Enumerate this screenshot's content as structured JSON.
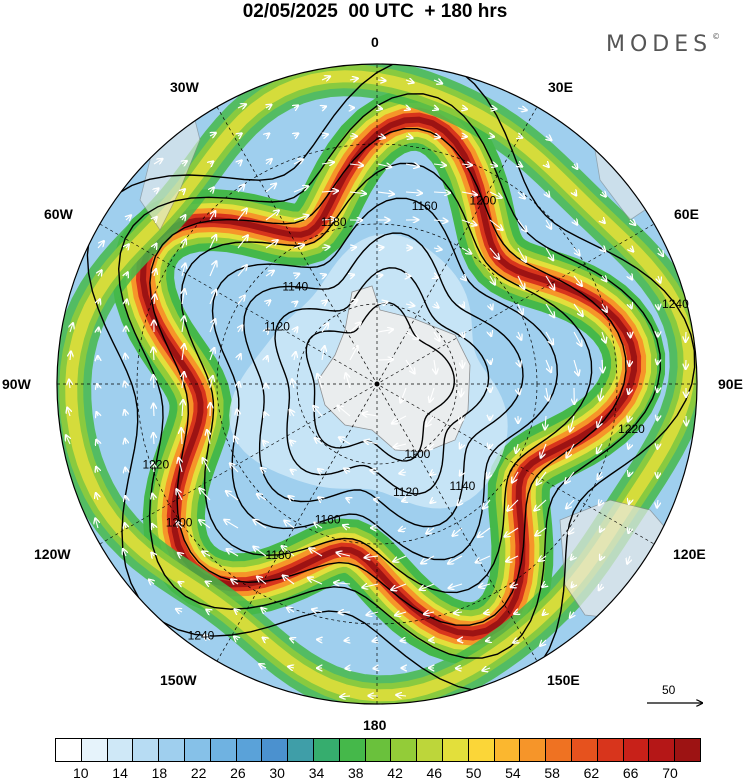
{
  "title": "02/05/2025  00 UTC  + 180 hrs",
  "brand": {
    "name": "MODES",
    "mark": "©"
  },
  "longitudes": {
    "lon_0": "0",
    "lon_30e": "30E",
    "lon_60e": "60E",
    "lon_90e": "90E",
    "lon_120e": "120E",
    "lon_150e": "150E",
    "lon_180": "180",
    "lon_150w": "150W",
    "lon_120w": "120W",
    "lon_90w": "90W",
    "lon_60w": "60W",
    "lon_30w": "30W"
  },
  "reference_vector": {
    "label": "50"
  },
  "colorbar": {
    "colors": [
      "#ffffff",
      "#e6f3fb",
      "#cfe8f7",
      "#b7dcf3",
      "#9fcfee",
      "#86c1e8",
      "#6fb2e1",
      "#5aa2d9",
      "#4b91cf",
      "#3f9ea8",
      "#36ad6e",
      "#45b84a",
      "#6ac13c",
      "#93cc38",
      "#bdd63a",
      "#e3df3b",
      "#fbd638",
      "#fbb72f",
      "#f69529",
      "#ef7222",
      "#e6521e",
      "#d8351c",
      "#c82119",
      "#b51717",
      "#9d1313"
    ],
    "labels": [
      "10",
      "14",
      "18",
      "22",
      "26",
      "30",
      "34",
      "38",
      "42",
      "46",
      "50",
      "54",
      "58",
      "62",
      "66",
      "70"
    ]
  },
  "contours": [
    {
      "label": "1100",
      "level": 1100
    },
    {
      "label": "1120",
      "level": 1120
    },
    {
      "label": "1140",
      "level": 1140
    },
    {
      "label": "1160",
      "level": 1160
    },
    {
      "label": "1180",
      "level": 1180
    },
    {
      "label": "1200",
      "level": 1200
    },
    {
      "label": "1220",
      "level": 1220
    },
    {
      "label": "1240",
      "level": 1240
    }
  ]
}
